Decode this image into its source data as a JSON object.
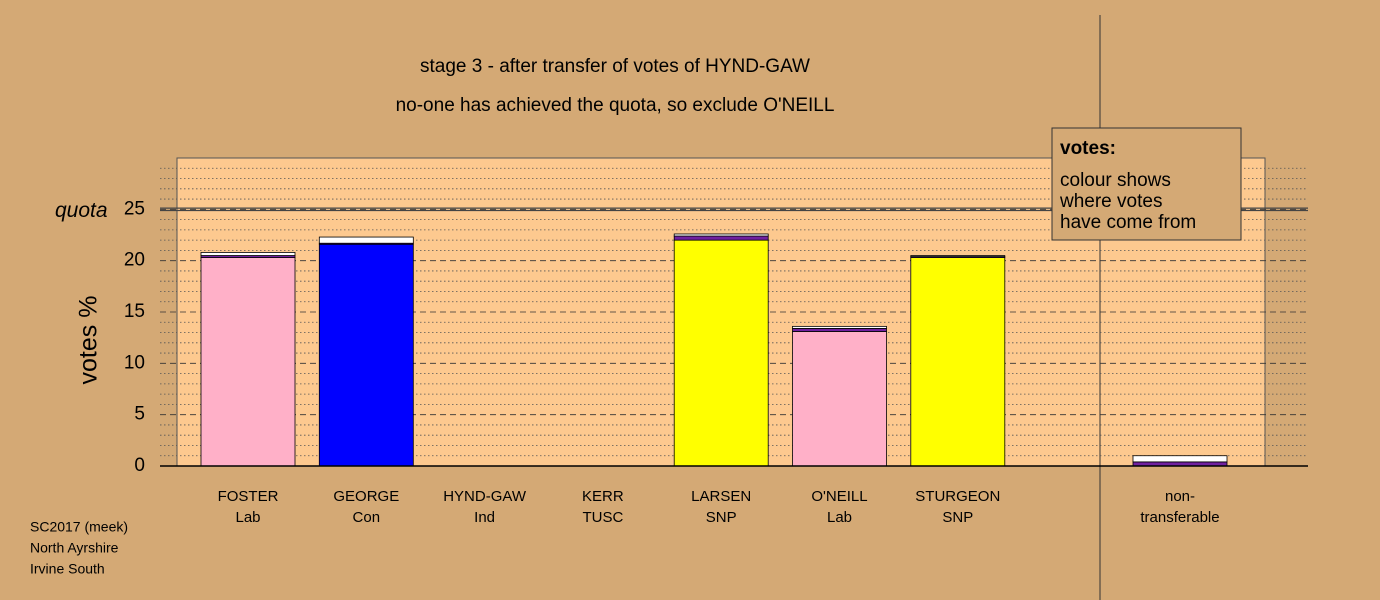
{
  "chart_data": {
    "type": "stacked_bar",
    "title": "stage 3 - after transfer of votes of HYND-GAW",
    "subtitle": "no-one has achieved the quota, so exclude O'NEILL",
    "y_label": "votes %",
    "categories": [
      [
        "FOSTER",
        "Lab"
      ],
      [
        "GEORGE",
        "Con"
      ],
      [
        "HYND-GAW",
        "Ind"
      ],
      [
        "KERR",
        "TUSC"
      ],
      [
        "LARSEN",
        "SNP"
      ],
      [
        "O'NEILL",
        "Lab"
      ],
      [
        "STURGEON",
        "SNP"
      ],
      [
        "non-",
        "transferable"
      ]
    ],
    "series": [
      {
        "color": "#ffb0c8",
        "values": [
          20.3,
          0,
          0,
          0,
          0,
          13.1,
          0,
          0
        ]
      },
      {
        "color": "#0000ff",
        "values": [
          0,
          21.6,
          0,
          0,
          0,
          0,
          0,
          0
        ]
      },
      {
        "color": "#ffff00",
        "values": [
          0,
          0,
          0,
          0,
          22.0,
          0,
          20.3,
          0
        ]
      },
      {
        "color": "#7020a0",
        "values": [
          0.2,
          0.1,
          0,
          0,
          0.4,
          0.3,
          0.1,
          0.4
        ]
      },
      {
        "color": "#ffffff",
        "values": [
          0.3,
          0.6,
          0,
          0,
          0.2,
          0.2,
          0.1,
          0.6
        ]
      }
    ],
    "ylim": [
      0,
      30
    ],
    "yticks": [
      0,
      5,
      10,
      15,
      20,
      25
    ],
    "minor_yticks": [
      1,
      2,
      3,
      4,
      6,
      7,
      8,
      9,
      11,
      12,
      13,
      14,
      16,
      17,
      18,
      19,
      21,
      22,
      23,
      24,
      26,
      27,
      28,
      29
    ],
    "quota": {
      "value": 25,
      "label": "quota"
    },
    "legend": {
      "title": "votes:",
      "lines": [
        "colour shows",
        "where votes",
        "have come from"
      ]
    },
    "footer": [
      "SC2017 (meek)",
      "North Ayrshire",
      "Irvine South"
    ]
  }
}
